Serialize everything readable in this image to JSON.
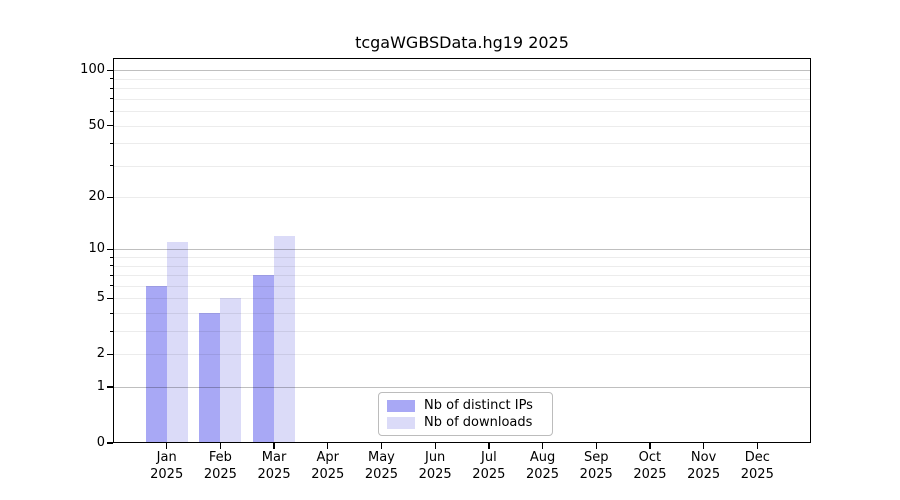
{
  "chart_data": {
    "type": "bar",
    "title": "tcgaWGBSData.hg19 2025",
    "categories": [
      "Jan",
      "Feb",
      "Mar",
      "Apr",
      "May",
      "Jun",
      "Jul",
      "Aug",
      "Sep",
      "Oct",
      "Nov",
      "Dec"
    ],
    "x_tick_year": "2025",
    "series": [
      {
        "name": "Nb of distinct IPs",
        "color": "#a8a8f5",
        "values": [
          6,
          4,
          7,
          0,
          0,
          0,
          0,
          0,
          0,
          0,
          0,
          0
        ]
      },
      {
        "name": "Nb of downloads",
        "color": "#dbdbf8",
        "values": [
          11,
          5,
          12,
          0,
          0,
          0,
          0,
          0,
          0,
          0,
          0,
          0
        ]
      }
    ],
    "yscale": "log1p",
    "ylim": [
      0,
      118
    ],
    "y_tick_labels": [
      100,
      50,
      20,
      10,
      5,
      2,
      1,
      0
    ],
    "y_major_gridlines": [
      1,
      10,
      100
    ],
    "y_minor_gridlines": [
      2,
      3,
      4,
      5,
      6,
      7,
      8,
      9,
      20,
      30,
      40,
      50,
      60,
      70,
      80,
      90
    ],
    "grid": true,
    "legend_position": "lower center",
    "colors": {
      "bar_distinct_ips": "#a8a8f5",
      "bar_downloads": "#dbdbf8",
      "major_grid": "rgba(0,0,0,0.25)",
      "minor_grid": "rgba(0,0,0,0.075)",
      "axis": "#000000",
      "background": "#ffffff"
    }
  },
  "legend": {
    "items": [
      {
        "label": "Nb of distinct IPs"
      },
      {
        "label": "Nb of downloads"
      }
    ]
  }
}
